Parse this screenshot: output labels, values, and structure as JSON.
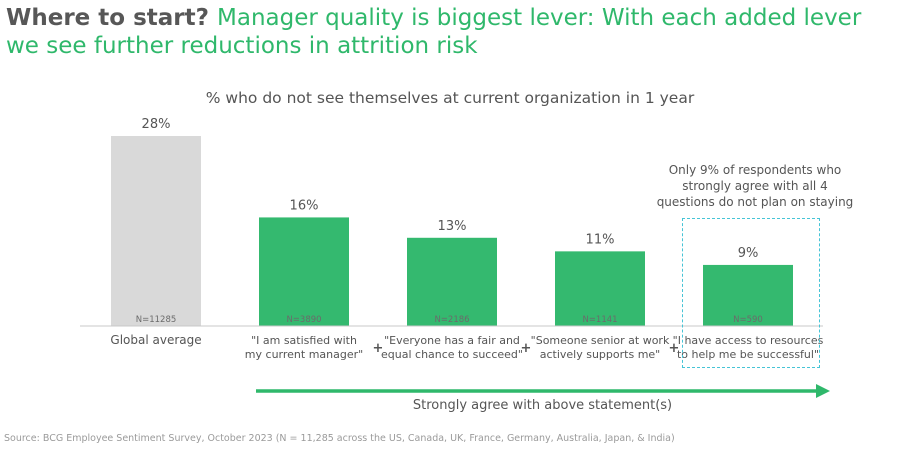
{
  "header": {
    "title_prefix": "Where to start?",
    "title_accent": "Manager quality is biggest lever: With each added lever we see further reductions in attrition risk"
  },
  "chart_data": {
    "type": "bar",
    "title": "% who do not see themselves at current organization in 1 year",
    "categories": [
      "Global average",
      "\"I am satisfied with my current manager\"",
      "\"Everyone has a fair and equal chance to succeed\"",
      "\"Someone senior at work actively supports me\"",
      "\"I have access to resources to help me be successful\""
    ],
    "category_lines": [
      [
        "Global average"
      ],
      [
        "\"I am satisfied with",
        "my current manager\""
      ],
      [
        "\"Everyone has a fair and",
        "equal chance to succeed\""
      ],
      [
        "\"Someone senior at work",
        "actively supports me\""
      ],
      [
        "\"I have access to resources",
        "to help me be successful\""
      ]
    ],
    "values": [
      28,
      16,
      13,
      11,
      9
    ],
    "value_labels": [
      "28%",
      "16%",
      "13%",
      "11%",
      "9%"
    ],
    "sample_sizes": [
      "N=11285",
      "N=3890",
      "N=2186",
      "N=1141",
      "N=590"
    ],
    "colors": [
      "#d9d9d9",
      "#34b96f",
      "#34b96f",
      "#34b96f",
      "#34b96f"
    ],
    "separator": "+",
    "ylim": [
      0,
      30
    ],
    "xlabel": "",
    "ylabel": "",
    "grid": false
  },
  "annotations": {
    "callout": "Only 9% of respondents who strongly agree with all 4 questions do not plan on staying",
    "arrow_label": "Strongly agree with above statement(s)"
  },
  "colors": {
    "accent": "#2fb86b",
    "bar_green": "#34b96f",
    "bar_grey": "#d9d9d9",
    "callout_border": "#46c4d6",
    "text": "#575757"
  },
  "footer": {
    "source": "Source: BCG Employee Sentiment Survey, October 2023 (N = 11,285 across the US, Canada, UK, France, Germany, Australia, Japan, & India)"
  }
}
